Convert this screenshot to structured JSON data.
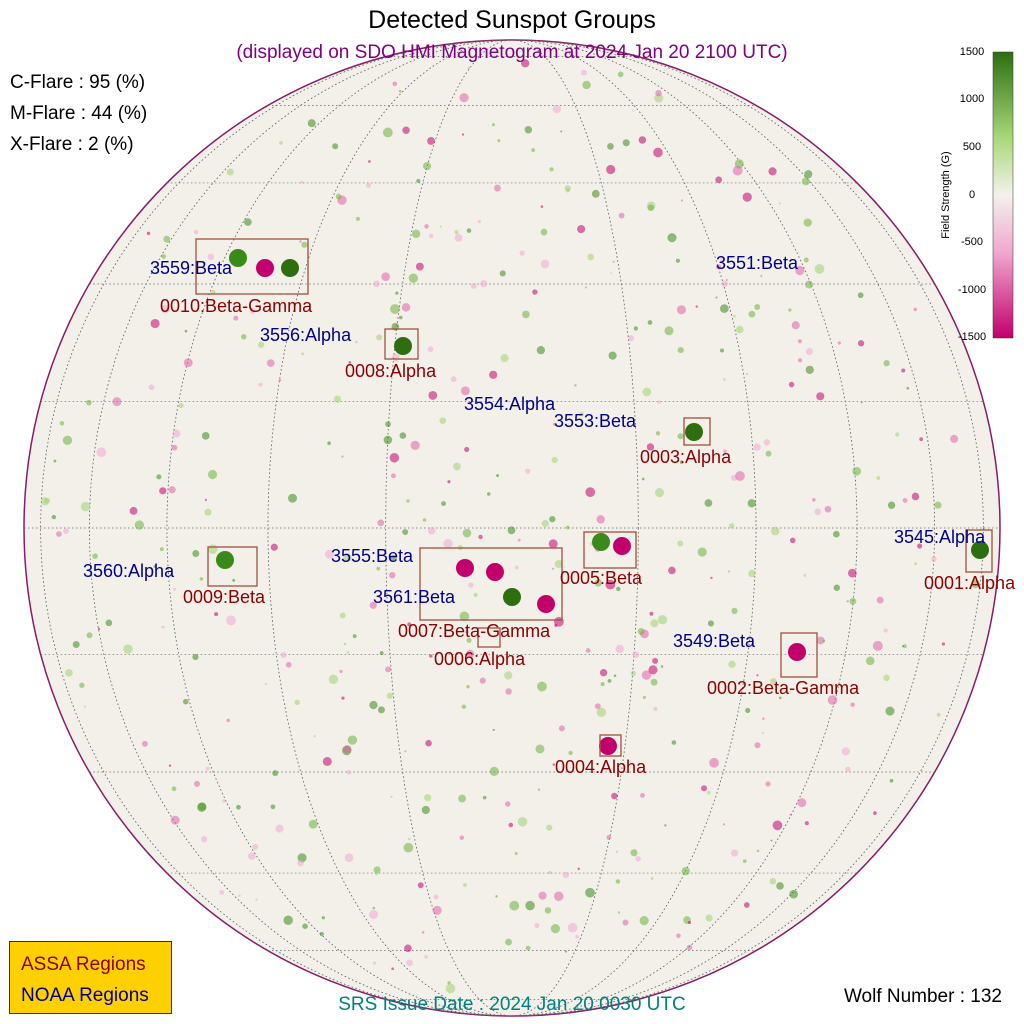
{
  "title": "Detected Sunspot Groups",
  "subtitle": "(displayed on SDO HMI Magnetogram at 2024 Jan 20 2100 UTC)",
  "flare_probabilities": {
    "c_flare": "C-Flare : 95 (%)",
    "m_flare": "M-Flare : 44 (%)",
    "x_flare": "X-Flare :  2 (%)"
  },
  "colorbar": {
    "title": "Field Strength (G)",
    "ticks": [
      "1500",
      "1000",
      "500",
      "0",
      "-500",
      "-1000",
      "-1500"
    ],
    "range": [
      -1500,
      1500
    ],
    "colors": {
      "positive": "#2d6e10",
      "mid": "#f4f1ec",
      "negative": "#c2006b"
    }
  },
  "regions_assa": [
    "0010:Beta-Gamma",
    "0008:Alpha",
    "0003:Alpha",
    "0005:Beta",
    "0001:Alpha",
    "0009:Beta",
    "0007:Beta-Gamma",
    "0006:Alpha",
    "0002:Beta-Gamma",
    "0004:Alpha"
  ],
  "regions_noaa": [
    "3559:Beta",
    "3556:Alpha",
    "3551:Beta",
    "3554:Alpha",
    "3553:Beta",
    "3545:Alpha",
    "3560:Alpha",
    "3555:Beta",
    "3561:Beta",
    "3549:Beta"
  ],
  "legend": {
    "assa": "ASSA Regions",
    "noaa": "NOAA Regions"
  },
  "srs_issue": "SRS Issue Date : 2024 Jan 20 0030 UTC",
  "wolf_number": "Wolf Number : 132"
}
